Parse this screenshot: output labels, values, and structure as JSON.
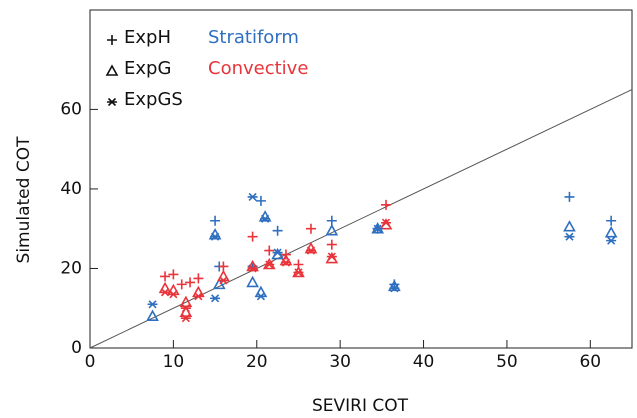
{
  "chart_data": {
    "type": "scatter",
    "xlabel": "SEVIRI COT",
    "ylabel": "Simulated COT",
    "xlim": [
      0,
      65
    ],
    "ylim": [
      0,
      85
    ],
    "xticks": [
      0,
      10,
      20,
      30,
      40,
      50,
      60
    ],
    "yticks": [
      0,
      20,
      40,
      60
    ],
    "groups": [
      {
        "name": "Stratiform",
        "color": "#2f6fc0"
      },
      {
        "name": "Convective",
        "color": "#e8343a"
      }
    ],
    "series": [
      {
        "name": "ExpH",
        "marker": "plus",
        "groups": [
          {
            "x": [
              15,
              15.5,
              19.5,
              20.5,
              22.5,
              29,
              34.5,
              36.5,
              57.5,
              62.5
            ],
            "y": [
              32,
              20.5,
              20.5,
              37,
              29.5,
              32,
              30,
              16,
              38,
              32
            ]
          },
          {
            "x": [
              9,
              10,
              11,
              12,
              13,
              16,
              19.5,
              21.5,
              23.5,
              25,
              26.5,
              29,
              35.5
            ],
            "y": [
              18,
              18.5,
              16,
              16.5,
              17.5,
              20.5,
              28,
              24.5,
              23.5,
              21,
              30,
              26,
              36
            ]
          }
        ]
      },
      {
        "name": "ExpG",
        "marker": "triangle",
        "groups": [
          {
            "x": [
              7.5,
              15,
              15.5,
              19.5,
              20.5,
              21,
              22.5,
              29,
              34.5,
              36.5,
              57.5,
              62.5
            ],
            "y": [
              8,
              28.5,
              16,
              16.5,
              14,
              33,
              23.5,
              29.5,
              30,
              15.5,
              30.5,
              29
            ]
          },
          {
            "x": [
              9,
              10,
              11.5,
              11.5,
              13,
              16,
              19.5,
              21.5,
              23.5,
              25,
              26.5,
              29,
              35.5
            ],
            "y": [
              15,
              14.5,
              11.5,
              9,
              14,
              18,
              20.5,
              21,
              22,
              19,
              25,
              22.5,
              31
            ]
          }
        ]
      },
      {
        "name": "ExpGS",
        "marker": "asterisk",
        "groups": [
          {
            "x": [
              7.5,
              15,
              15,
              19.5,
              20.5,
              21,
              22.5,
              34.5,
              36.5,
              57.5,
              62.5
            ],
            "y": [
              11,
              28,
              12.5,
              38,
              13,
              32.5,
              24,
              30,
              15,
              28,
              27
            ]
          },
          {
            "x": [
              9,
              10,
              11.5,
              11.5,
              13,
              16,
              19.5,
              21.5,
              23.5,
              25,
              26.5,
              29,
              35.5
            ],
            "y": [
              14,
              13.5,
              7.5,
              10,
              13,
              17,
              20,
              21,
              21.5,
              19,
              24.5,
              23,
              31.5
            ]
          }
        ]
      }
    ]
  }
}
